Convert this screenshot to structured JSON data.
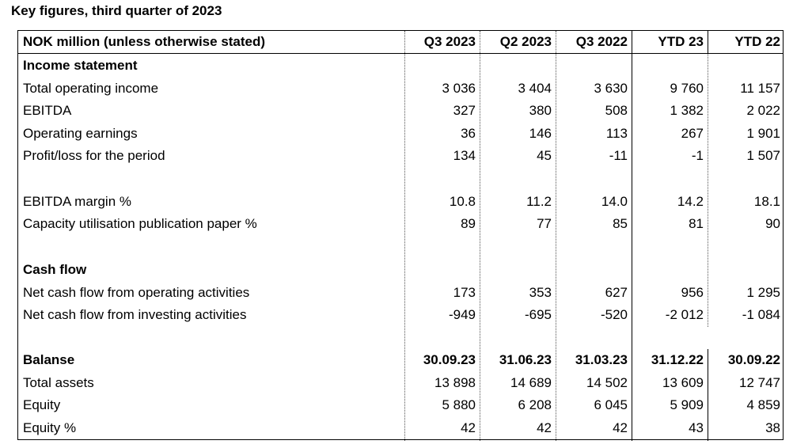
{
  "title": "Key figures, third quarter of 2023",
  "header": {
    "label": "NOK million (unless otherwise stated)",
    "columns": [
      "Q3 2023",
      "Q2 2023",
      "Q3 2022",
      "YTD 23",
      "YTD 22"
    ]
  },
  "rows": [
    {
      "label": "Income statement",
      "bold": true,
      "values": [
        "",
        "",
        "",
        "",
        ""
      ]
    },
    {
      "label": "Total operating income",
      "values": [
        "3 036",
        "3 404",
        "3 630",
        "9 760",
        "11 157"
      ]
    },
    {
      "label": "EBITDA",
      "values": [
        "327",
        "380",
        "508",
        "1 382",
        "2 022"
      ]
    },
    {
      "label": "Operating earnings",
      "values": [
        "36",
        "146",
        "113",
        "267",
        "1 901"
      ]
    },
    {
      "label": "Profit/loss for the period",
      "values": [
        "134",
        "45",
        "-11",
        "-1",
        "1 507"
      ]
    },
    {
      "label": "",
      "values": [
        "",
        "",
        "",
        "",
        ""
      ]
    },
    {
      "label": "EBITDA margin %",
      "values": [
        "10.8",
        "11.2",
        "14.0",
        "14.2",
        "18.1"
      ]
    },
    {
      "label": "Capacity utilisation publication paper %",
      "values": [
        "89",
        "77",
        "85",
        "81",
        "90"
      ]
    },
    {
      "label": "",
      "values": [
        "",
        "",
        "",
        "",
        ""
      ]
    },
    {
      "label": "Cash flow",
      "bold": true,
      "values": [
        "",
        "",
        "",
        "",
        ""
      ]
    },
    {
      "label": "Net cash flow from operating activities",
      "values": [
        "173",
        "353",
        "627",
        "956",
        "1 295"
      ]
    },
    {
      "label": "Net cash flow from investing activities",
      "values": [
        "-949",
        "-695",
        "-520",
        "-2 012",
        "-1 084"
      ]
    },
    {
      "label": "",
      "values": [
        "",
        "",
        "",
        "",
        ""
      ]
    },
    {
      "label": "Balanse",
      "bold": true,
      "bold_values": true,
      "values": [
        "30.09.23",
        "31.06.23",
        "31.03.23",
        "31.12.22",
        "30.09.22"
      ]
    },
    {
      "label": "Total assets",
      "values": [
        "13 898",
        "14 689",
        "14 502",
        "13 609",
        "12 747"
      ]
    },
    {
      "label": "Equity",
      "values": [
        "5 880",
        "6 208",
        "6 045",
        "5 909",
        "4 859"
      ]
    },
    {
      "label": "Equity %",
      "values": [
        "42",
        "42",
        "42",
        "43",
        "38"
      ]
    }
  ]
}
